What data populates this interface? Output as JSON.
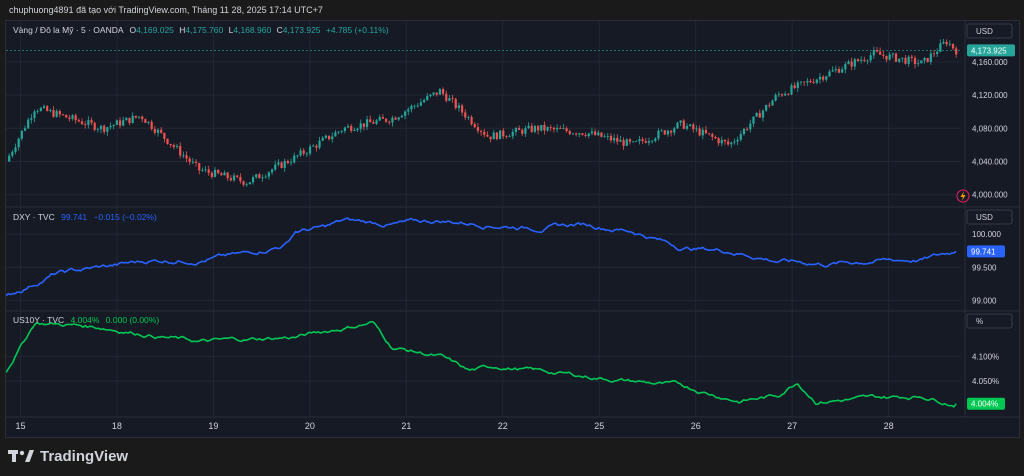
{
  "header": {
    "caption": "chuphuong4891 đã tạo với TradingView.com, Tháng 11 28, 2025 17:14 UTC+7"
  },
  "brand": {
    "name": "TradingView"
  },
  "colors": {
    "up": "#26a69a",
    "down": "#ef5350",
    "dxy": "#2962ff",
    "us10y": "#00c853",
    "text": "#d1d4dc",
    "grid": "#232733",
    "panel": "#161a25"
  },
  "chart_data": [
    {
      "type": "candlestick",
      "title": "Vàng / Đô la Mỹ · 5 · OANDA",
      "ohlc": {
        "o_label": "O",
        "o": "4,169.025",
        "h_label": "H",
        "h": "4,175.760",
        "l_label": "L",
        "l": "4,168.960",
        "c_label": "C",
        "c": "4,173.925",
        "change": "+4.785 (+0.11%)"
      },
      "currency": "USD",
      "y_ticks": [
        "4,160.000",
        "4,120.000",
        "4,080.000",
        "4,040.000",
        "4,000.000"
      ],
      "ylim": [
        3990,
        4190
      ],
      "last_value": 4173.925,
      "last_label": "4,173.925",
      "x": [
        0,
        0.3,
        1,
        1.4,
        2,
        2.5,
        3,
        3.5,
        4,
        4.5,
        5,
        5.5,
        6,
        6.5,
        7,
        7.5,
        8,
        8.5,
        9,
        9.5,
        9.75,
        9.85
      ],
      "y": [
        4040,
        4105,
        4080,
        4095,
        4030,
        4015,
        4045,
        4080,
        4092,
        4125,
        4070,
        4080,
        4075,
        4060,
        4085,
        4060,
        4120,
        4145,
        4170,
        4158,
        4185,
        4174
      ]
    },
    {
      "type": "line",
      "title": "DXY · TVC",
      "value": "99.741",
      "change": "−0.015 (−0.02%)",
      "currency": "USD",
      "y_ticks": [
        "100.000",
        "99.500",
        "99.000"
      ],
      "ylim": [
        98.9,
        100.35
      ],
      "last_value": 99.741,
      "last_label": "99.741",
      "x": [
        0,
        0.5,
        1,
        1.5,
        2,
        2.5,
        2.9,
        3,
        3.3,
        3.5,
        4,
        4.5,
        5,
        5.5,
        6,
        6.5,
        7,
        7.5,
        8,
        8.5,
        9,
        9.5,
        9.85
      ],
      "y": [
        99.05,
        99.4,
        99.5,
        99.6,
        99.62,
        99.7,
        99.85,
        100.05,
        100.1,
        100.2,
        100.15,
        100.2,
        100.15,
        100.1,
        100.15,
        100.05,
        99.8,
        99.75,
        99.6,
        99.55,
        99.6,
        99.62,
        99.74
      ]
    },
    {
      "type": "line",
      "title": "US10Y · TVC",
      "value": "4.004%",
      "change": "0.000 (0.00%)",
      "currency": "%",
      "y_ticks": [
        "4.100%",
        "4.050%"
      ],
      "ylim": [
        3.985,
        4.185
      ],
      "last_value": 4.004,
      "last_label": "4.004%",
      "x": [
        0,
        0.3,
        1,
        2,
        3,
        3.8,
        4,
        4.5,
        4.8,
        5.1,
        6,
        6.5,
        7,
        7.6,
        8,
        8.2,
        8.4,
        9,
        9.5,
        9.85
      ],
      "y": [
        4.07,
        4.17,
        4.16,
        4.13,
        4.14,
        4.17,
        4.12,
        4.1,
        4.07,
        4.08,
        4.06,
        4.05,
        4.04,
        4.01,
        4.02,
        4.05,
        4.01,
        4.015,
        4.02,
        4.004
      ]
    }
  ],
  "x_axis": {
    "ticks": [
      {
        "label": "15",
        "x": 0.15
      },
      {
        "label": "18",
        "x": 1.15
      },
      {
        "label": "19",
        "x": 2.15
      },
      {
        "label": "20",
        "x": 3.15
      },
      {
        "label": "21",
        "x": 4.15
      },
      {
        "label": "22",
        "x": 5.15
      },
      {
        "label": "25",
        "x": 6.15
      },
      {
        "label": "26",
        "x": 7.15
      },
      {
        "label": "27",
        "x": 8.15
      },
      {
        "label": "28",
        "x": 9.15
      }
    ],
    "xlim": [
      0,
      9.9
    ]
  }
}
